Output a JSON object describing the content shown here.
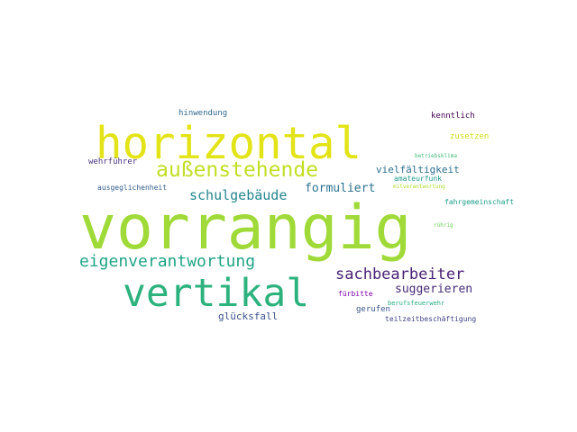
{
  "words": {
    "vorrangig": {
      "text": "vorrangig",
      "color": "#a0da39"
    },
    "horizontal": {
      "text": "horizontal",
      "color": "#e3e418"
    },
    "vertikal": {
      "text": "vertikal",
      "color": "#2db27d"
    },
    "aussenstehende": {
      "text": "außenstehende",
      "color": "#c2df23"
    },
    "eigenverantwortung": {
      "text": "eigenverantwortung",
      "color": "#21a585"
    },
    "sachbearbeiter": {
      "text": "sachbearbeiter",
      "color": "#482173"
    },
    "schulgebaeude": {
      "text": "schulgebäude",
      "color": "#24868e"
    },
    "suggerieren": {
      "text": "suggerieren",
      "color": "#472d7b"
    },
    "formuliert": {
      "text": "formuliert",
      "color": "#2c728e"
    },
    "vielfaeltigkeit": {
      "text": "vielfältigkeit",
      "color": "#2d708e"
    },
    "gluecksfall": {
      "text": "glücksfall",
      "color": "#3b528b"
    },
    "hinwendung": {
      "text": "hinwendung",
      "color": "#31688e"
    },
    "kenntlich": {
      "text": "kenntlich",
      "color": "#440154"
    },
    "zusetzen": {
      "text": "zusetzen",
      "color": "#d0e11c"
    },
    "wehrfuehrer": {
      "text": "wehrführer",
      "color": "#46337e"
    },
    "betriebsklima": {
      "text": "betriebsklima",
      "color": "#3fbc73"
    },
    "amateurfunk": {
      "text": "amateurfunk",
      "color": "#1f998a"
    },
    "ausgeglichenheit": {
      "text": "ausgeglichenheit",
      "color": "#355f8d"
    },
    "mitverantwortung": {
      "text": "mitverantwortung",
      "color": "#addc30"
    },
    "fahrgemeinschaft": {
      "text": "fahrgemeinschaft",
      "color": "#1e9c89"
    },
    "ruehrig": {
      "text": "rührig",
      "color": "#6ece58"
    },
    "fuerbitte": {
      "text": "fürbitte",
      "color": "#7e03a8"
    },
    "berufsfeuerwehr": {
      "text": "berufsfeuerwehr",
      "color": "#26ad81"
    },
    "gerufen": {
      "text": "gerufen",
      "color": "#39568c"
    },
    "teilzeitbeschaeftigung": {
      "text": "teilzeitbeschäftigung",
      "color": "#414487"
    }
  }
}
